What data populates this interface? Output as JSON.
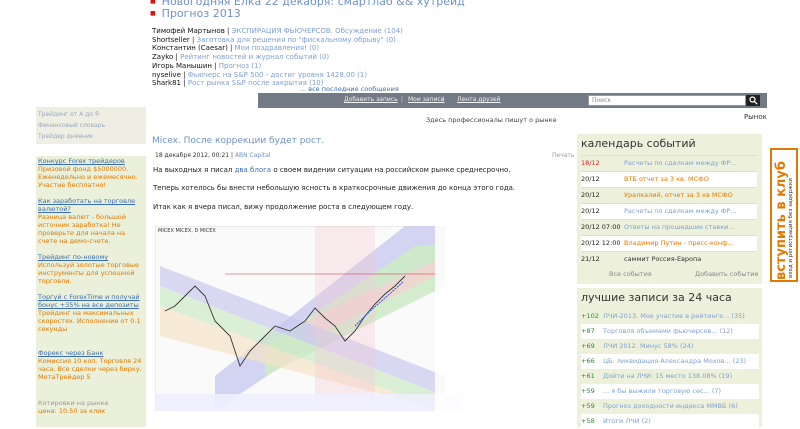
{
  "top_links": [
    "Новогодняя Елка 22 декабря: смартлаб && хутрейд",
    "Прогноз 2013"
  ],
  "comments": [
    {
      "author": "Тимофей Мартынов",
      "text": "ЭКСПИРАЦИЯ ФЬЮЧЕРСОВ. Обсуждение (104)"
    },
    {
      "author": "Shortseller",
      "text": "Заготовка для решения по \"фискальному обрыву\" (0)"
    },
    {
      "author": "Константин (Caesar)",
      "text": "Мои поздравления! (0)"
    },
    {
      "author": "Zayko",
      "text": "Рейтинг новостей и журнал событий (0)"
    },
    {
      "author": "Игорь Манышин",
      "text": "Прогноз (1)"
    },
    {
      "author": "nyselive",
      "text": "Фьючерс на S&P 500 - достиг уровня 1428.00 (1)"
    },
    {
      "author": "Shark81",
      "text": "Рост рынка S&P после закрытия (10)"
    }
  ],
  "all_comments": "... все последние сообщения",
  "nav": {
    "add": "Добавить запись",
    "my": "Мои записи",
    "friends": "Лента друзей"
  },
  "search": {
    "placeholder": "Поиск"
  },
  "slogan": "Здесь профессионалы пишут о рынке",
  "rynok": "Рынок",
  "left_box": [
    "Трейдинг от А до Я",
    "Финансовый словарь",
    "Трейдер дневник"
  ],
  "left_ads": [
    {
      "head": "Конкурс Forex трейдеров",
      "body": "Призовой фонд $5000000. Еженедельно и ежемесячно. Участие бесплатно!"
    },
    {
      "head": "Как заработать на торговле валютой?",
      "body": "Разница валют - большой источник заработка! Не проверьте для начала на счете на демо-счете."
    },
    {
      "head": "Трейдинг по-новому",
      "body": "Используй золотые торговые инструменты для успешной торговли."
    },
    {
      "head": "Торгуй с ForexTime и получай бонус +35% на все депозиты",
      "body": "Трейдинг на максимальных скоростях. Исполнение от 0.1 секунды"
    },
    {
      "head": "Форекс через Банк",
      "body": "Комиссия 10 коп. Торговля 24 часа. Все сделки через бирку. МетаТрейдер 5"
    }
  ],
  "left_footer": {
    "label": "Котировки на рынке",
    "value": "цена: 10.50 за клик"
  },
  "article": {
    "title": "Micex. После коррекции будет рост.",
    "date": "18 декабря 2012, 00:21",
    "author": "ABN Capital",
    "print": "Печать",
    "p1_pre": "На выходных я писал",
    "p1_link": "два блога",
    "p1_post": "о своем видении ситуации на российском рынке среднесрочно.",
    "p2": "Теперь хотелось бы внести небольшую ясность в краткосрочные движения до конца этого года.",
    "p3": "Итак как я вчера писал, вижу продолжение роста в следующем году.",
    "chart_header": "MICEX MICEX, D MICEX"
  },
  "calendar": {
    "title": "календарь событий",
    "rows": [
      {
        "date": "18/12",
        "text": "Расчеты по сделкам между ФР...",
        "red": true,
        "style": "e"
      },
      {
        "date": "20/12",
        "text": "ВТБ отчет за 3 кв. МСФО",
        "red": false,
        "style": "o"
      },
      {
        "date": "20/12",
        "text": "Уралкалий, отчет за 3 кв МСФО",
        "red": false,
        "style": "o"
      },
      {
        "date": "20/12",
        "text": "Расчеты по сделкам между ФР...",
        "red": false,
        "style": "e"
      },
      {
        "date": "20/12 07:00",
        "text": "Ответы на прошедшие ставки...",
        "red": false,
        "style": "e"
      },
      {
        "date": "20/12 12:00",
        "text": "Владимир Путин - пресс-конф...",
        "red": false,
        "style": "o"
      },
      {
        "date": "21/12",
        "text": "саммит Россия-Европа",
        "red": false,
        "style": "s"
      }
    ],
    "all": "Все события",
    "add": "Добавить событие"
  },
  "best": {
    "title": "лучшие записи за 24 часа",
    "rows": [
      {
        "score": "+102",
        "text": "ЛЧИ-2013. Мое участие в рейтинге...",
        "count": "(35)"
      },
      {
        "score": "+87",
        "text": "Торговля объемами фьючерсов...",
        "count": "(12)"
      },
      {
        "score": "+69",
        "text": "ЛЧИ 2012. Минус 58%",
        "count": "(24)"
      },
      {
        "score": "+66",
        "text": "ЦБ: ликвидация Александра Мохов...",
        "count": "(23)"
      },
      {
        "score": "+61",
        "text": "Дойти на ЛЧИ: 15 место 138.08%",
        "count": "(19)"
      },
      {
        "score": "+59",
        "text": "... я бы выжили торговую сес...",
        "count": "(7)"
      },
      {
        "score": "+59",
        "text": "Прогноз доходности индекса ММВБ",
        "count": "(6)"
      },
      {
        "score": "+58",
        "text": "Итоги ЛЧИ",
        "count": "(2)"
      }
    ]
  },
  "join": {
    "main": "вступить в клуб",
    "sub": "вход и регистрация без задержки"
  },
  "colors": {
    "accent": "#e07a00",
    "link": "#3b6db3",
    "bar": "#727a85",
    "positive": "#2e8b3a"
  }
}
